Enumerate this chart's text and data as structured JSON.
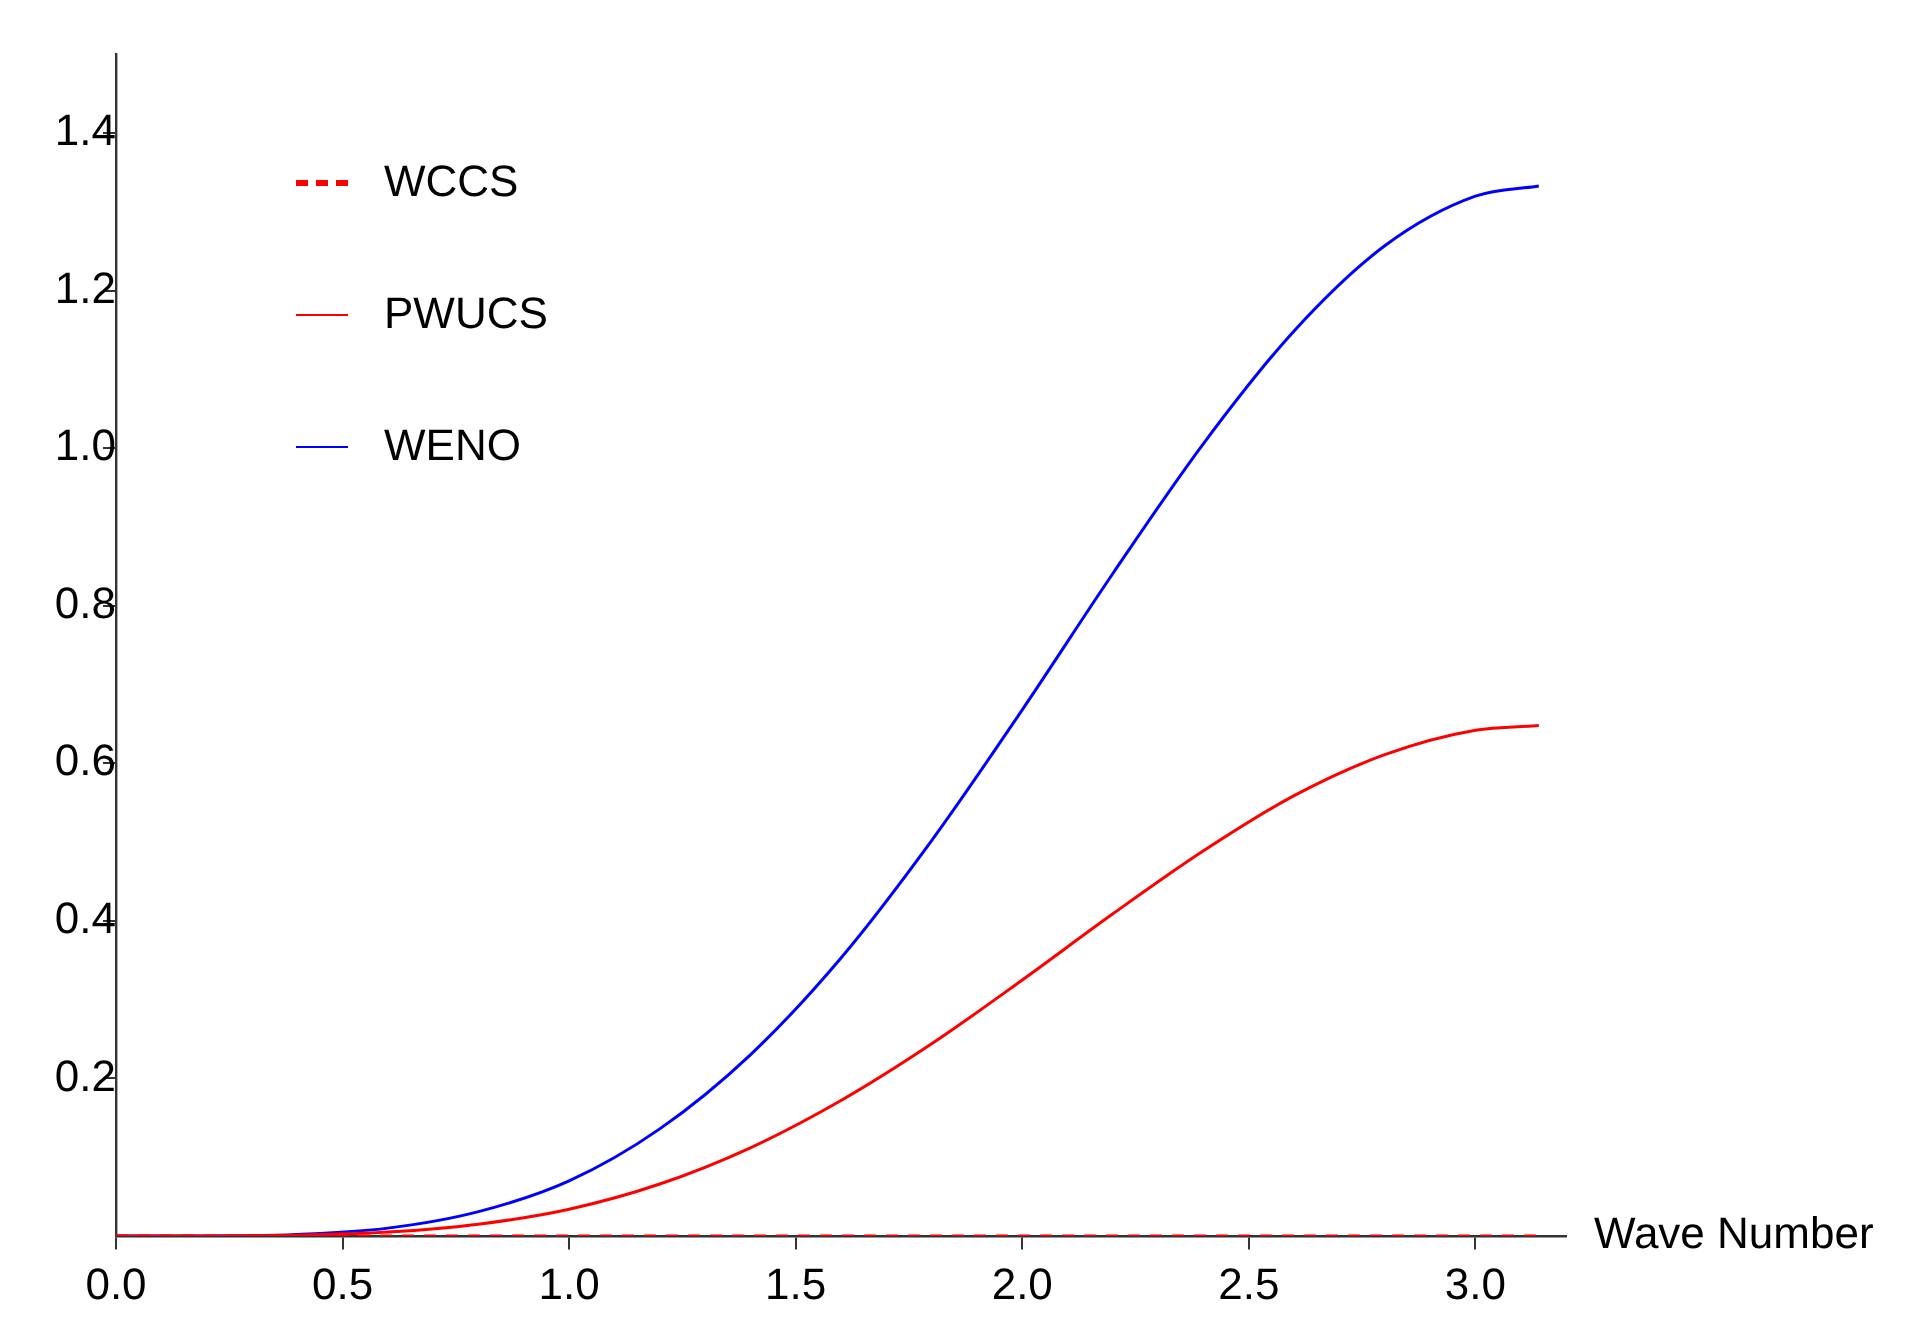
{
  "chart_data": {
    "type": "line",
    "xlabel": "Wave Number",
    "xlim": [
      0,
      3.2
    ],
    "ylim": [
      0,
      1.5
    ],
    "xticks": [
      {
        "value": 0,
        "label": "0.0"
      },
      0.5,
      {
        "value": 1,
        "label": "1.0"
      },
      1.5,
      {
        "value": 2,
        "label": "2.0"
      },
      2.5,
      {
        "value": 3,
        "label": "3.0"
      }
    ],
    "yticks": [
      0.2,
      0.4,
      0.6,
      0.8,
      {
        "value": 1,
        "label": "1.0"
      },
      1.2,
      1.4
    ],
    "grid": false,
    "legend": "top left",
    "marker": "none",
    "series": [
      {
        "name": "WCCS",
        "color": "#ff0000",
        "line_style": "dashed",
        "x": [
          0,
          3.14
        ],
        "values": [
          0,
          0
        ]
      },
      {
        "name": "PWUCS",
        "color": "#ff0000",
        "line_style": "solid",
        "x": [
          0,
          0.2,
          0.4,
          0.6,
          0.8,
          1.0,
          1.2,
          1.4,
          1.6,
          1.8,
          2.0,
          2.2,
          2.4,
          2.6,
          2.8,
          3.0,
          3.14
        ],
        "values": [
          0,
          0,
          0.001,
          0.005,
          0.015,
          0.034,
          0.066,
          0.112,
          0.172,
          0.244,
          0.325,
          0.409,
          0.489,
          0.559,
          0.611,
          0.642,
          0.648
        ]
      },
      {
        "name": "WENO",
        "color": "#0000ff",
        "line_style": "solid",
        "x": [
          0,
          0.2,
          0.4,
          0.6,
          0.8,
          1.0,
          1.2,
          1.4,
          1.6,
          1.8,
          2.0,
          2.2,
          2.4,
          2.6,
          2.8,
          3.0,
          3.14
        ],
        "values": [
          0,
          0,
          0.002,
          0.01,
          0.031,
          0.07,
          0.136,
          0.23,
          0.353,
          0.502,
          0.668,
          0.841,
          1.006,
          1.149,
          1.257,
          1.32,
          1.333
        ]
      }
    ]
  }
}
